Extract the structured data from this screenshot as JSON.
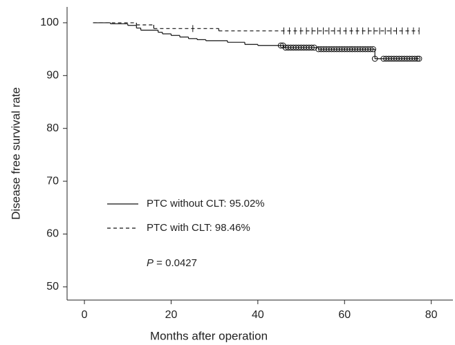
{
  "chart_data": {
    "type": "survival",
    "x_label": "Months after operation",
    "y_label": "Disease free survival rate",
    "xlim": [
      -4,
      85
    ],
    "ylim": [
      47.5,
      103
    ],
    "xticks": [
      0,
      20,
      40,
      60,
      80
    ],
    "yticks": [
      50,
      60,
      70,
      80,
      90,
      100
    ],
    "series": [
      {
        "name": "PTC without CLT: 95.02%",
        "color": "#111111",
        "dash": false,
        "censor_mark": "circle",
        "x": [
          2,
          6,
          10,
          12,
          13,
          17,
          18,
          20,
          22,
          24,
          26,
          28,
          33,
          37,
          40,
          46,
          54,
          67,
          77.2
        ],
        "values": [
          100,
          99.8,
          99.5,
          99.0,
          98.6,
          98.2,
          97.9,
          97.6,
          97.3,
          97.0,
          96.8,
          96.6,
          96.3,
          95.9,
          95.7,
          95.3,
          95.0,
          93.2,
          93.2
        ],
        "censored": {
          "x": [
            45.3,
            45.8,
            46.4,
            47,
            47.6,
            48.2,
            48.8,
            49.4,
            50,
            50.6,
            51.2,
            51.8,
            52.4,
            53,
            54,
            54.6,
            55.2,
            55.8,
            56.4,
            57,
            57.6,
            58.2,
            58.8,
            59.4,
            60,
            60.6,
            61.2,
            61.8,
            62.4,
            63,
            63.6,
            64.2,
            64.8,
            65.4,
            66,
            66.6,
            67,
            69,
            69.6,
            70.2,
            70.8,
            71.4,
            72,
            72.6,
            73.2,
            73.8,
            74.4,
            75,
            75.6,
            76.2,
            76.8,
            77.2
          ],
          "y": [
            95.7,
            95.7,
            95.3,
            95.3,
            95.3,
            95.3,
            95.3,
            95.3,
            95.3,
            95.3,
            95.3,
            95.3,
            95.3,
            95.3,
            95.0,
            95.0,
            95.0,
            95.0,
            95.0,
            95.0,
            95.0,
            95.0,
            95.0,
            95.0,
            95.0,
            95.0,
            95.0,
            95.0,
            95.0,
            95.0,
            95.0,
            95.0,
            95.0,
            95.0,
            95.0,
            95.0,
            93.2,
            93.2,
            93.2,
            93.2,
            93.2,
            93.2,
            93.2,
            93.2,
            93.2,
            93.2,
            93.2,
            93.2,
            93.2,
            93.2,
            93.2,
            93.2
          ]
        }
      },
      {
        "name": "PTC with CLT: 98.46%",
        "color": "#111111",
        "dash": true,
        "censor_mark": "tick",
        "x": [
          2,
          12,
          16,
          31,
          77.2
        ],
        "values": [
          100,
          99.6,
          98.9,
          98.46,
          98.46
        ],
        "censored": {
          "x": [
            25,
            46,
            47.3,
            48.6,
            49.9,
            51.2,
            52.5,
            53.8,
            55.1,
            56.4,
            57.7,
            59,
            60.3,
            61.6,
            62.9,
            64.2,
            65.5,
            66.8,
            68.1,
            69.4,
            70.7,
            72,
            73.3,
            74.6,
            75.9,
            77.2
          ],
          "y": [
            98.9,
            98.46,
            98.46,
            98.46,
            98.46,
            98.46,
            98.46,
            98.46,
            98.46,
            98.46,
            98.46,
            98.46,
            98.46,
            98.46,
            98.46,
            98.46,
            98.46,
            98.46,
            98.46,
            98.46,
            98.46,
            98.46,
            98.46,
            98.46,
            98.46,
            98.46
          ]
        }
      }
    ],
    "annotation": {
      "italic": "P",
      "text": " = 0.0427"
    }
  }
}
